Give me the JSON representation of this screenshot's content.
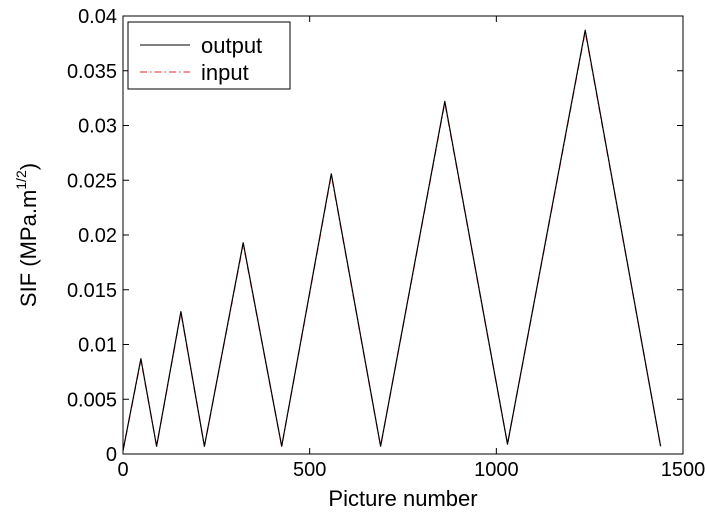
{
  "chart_data": {
    "type": "line",
    "title": "",
    "xlabel": "Picture number",
    "ylabel": {
      "main": "SIF (MPa.m",
      "sup": "1/2",
      "close": ")"
    },
    "xlim": [
      0,
      1500
    ],
    "ylim": [
      0,
      0.04
    ],
    "xticks": [
      0,
      500,
      1000,
      1500
    ],
    "xtick_labels": [
      "0",
      "500",
      "1000",
      "1500"
    ],
    "yticks": [
      0,
      0.005,
      0.01,
      0.015,
      0.02,
      0.025,
      0.03,
      0.035,
      0.04
    ],
    "ytick_labels": [
      "0",
      "0.005",
      "0.01",
      "0.015",
      "0.02",
      "0.025",
      "0.03",
      "0.035",
      "0.04"
    ],
    "grid": false,
    "legend_position": "top-left",
    "series": [
      {
        "name": "output",
        "color": "#000000",
        "dash": "solid",
        "x": [
          0,
          48,
          90,
          155,
          218,
          322,
          425,
          558,
          690,
          862,
          1030,
          1238,
          1440
        ],
        "y": [
          0.0003,
          0.0087,
          0.0007,
          0.013,
          0.0007,
          0.0193,
          0.0007,
          0.0256,
          0.0007,
          0.0322,
          0.0009,
          0.0387,
          0.0007
        ]
      },
      {
        "name": "input",
        "color": "#e8262a",
        "dash": "dash-dot",
        "x": [
          0,
          48,
          90,
          155,
          218,
          322,
          425,
          558,
          690,
          862,
          1030,
          1238,
          1440
        ],
        "y": [
          0.0003,
          0.0086,
          0.0007,
          0.0129,
          0.0007,
          0.0192,
          0.0007,
          0.0255,
          0.0007,
          0.0321,
          0.0009,
          0.0386,
          0.0007
        ]
      }
    ]
  }
}
